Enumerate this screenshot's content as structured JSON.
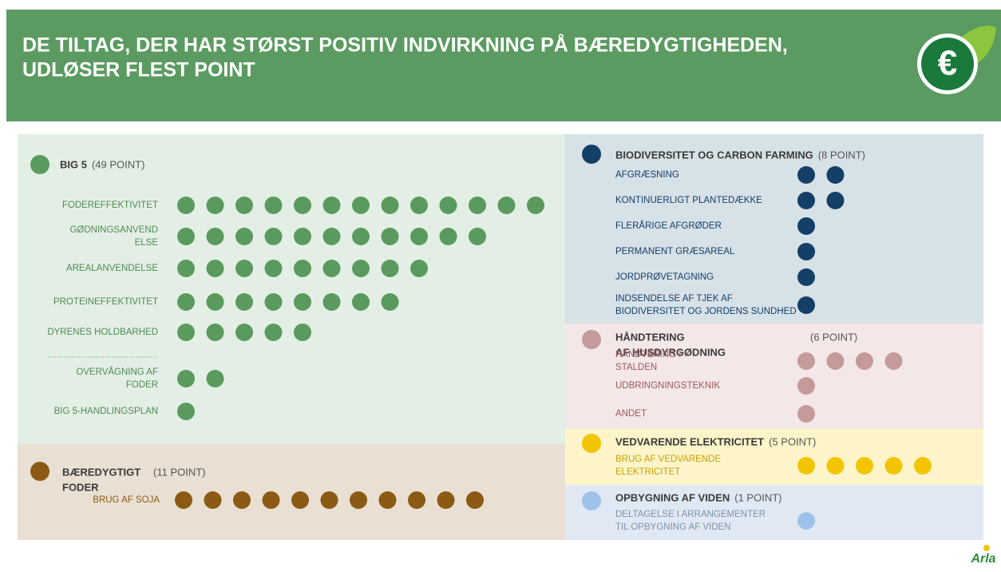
{
  "header": {
    "title": [
      "DE TILTAG, DER HAR STØRST POSITIV INDVIRKNING PÅ BÆREDYGTIGHEDEN,",
      "UDLØSER FLEST POINT"
    ]
  },
  "sections": [
    {
      "title": [
        "BIG 5"
      ],
      "points_label": "(49 POINT)",
      "color": "#5a9a5f",
      "items": [
        {
          "label": [
            "FODEREFFEKTIVITET"
          ],
          "points": 13
        },
        {
          "label": [
            "GØDNINGSANVEND",
            "ELSE"
          ],
          "points": 11
        },
        {
          "label": [
            "AREALANVENDELSE"
          ],
          "points": 9
        },
        {
          "label": [
            "PROTEINEFFEKTIVITET"
          ],
          "points": 8
        },
        {
          "label": [
            "DYRENES HOLDBARHED"
          ],
          "points": 5
        },
        {
          "label": [
            "OVERVÅGNING AF",
            "FODER"
          ],
          "points": 2
        },
        {
          "label": [
            "BIG 5-HANDLINGSPLAN"
          ],
          "points": 1
        }
      ]
    },
    {
      "title": [
        "BÆREDYGTIGT",
        "FODER"
      ],
      "points_label": "(11 POINT)",
      "color": "#8b5a14",
      "items": [
        {
          "label": [
            "BRUG AF SOJA"
          ],
          "points": 11
        }
      ]
    },
    {
      "title": [
        "BIODIVERSITET OG CARBON FARMING"
      ],
      "points_label": "(8 POINT)",
      "color": "#143f66",
      "items": [
        {
          "label": [
            "AFGRÆSNING"
          ],
          "points": 2
        },
        {
          "label": [
            "KONTINUERLIGT PLANTEDÆKKE"
          ],
          "points": 2
        },
        {
          "label": [
            "FLERÅRIGE AFGRØDER"
          ],
          "points": 1
        },
        {
          "label": [
            "PERMANENT GRÆSAREAL"
          ],
          "points": 1
        },
        {
          "label": [
            "JORDPRØVETAGNING"
          ],
          "points": 1
        },
        {
          "label": [
            "INDSENDELSE AF TJEK AF",
            "BIODIVERSITET OG JORDENS SUNDHED"
          ],
          "points": 1
        }
      ]
    },
    {
      "title": [
        "HÅNDTERING",
        "AF HUSDYRGØDNING"
      ],
      "points_label": "(6 POINT)",
      "color": "#c49a9b",
      "items": [
        {
          "label": [
            "HÅNDTERING I",
            "STALDEN"
          ],
          "points": 4
        },
        {
          "label": [
            "UDBRINGNINGSTEKNIK"
          ],
          "points": 1
        },
        {
          "label": [
            "ANDET"
          ],
          "points": 1
        }
      ]
    },
    {
      "title": [
        "VEDVARENDE ELEKTRICITET"
      ],
      "points_label": "(5 POINT)",
      "color": "#f2c500",
      "items": [
        {
          "label": [
            "BRUG AF VEDVARENDE",
            "ELEKTRICITET"
          ],
          "points": 5
        }
      ]
    },
    {
      "title": [
        "OPBYGNING AF VIDEN"
      ],
      "points_label": "(1 POINT)",
      "color": "#9fc3e8",
      "items": [
        {
          "label": [
            "DELTAGELSE I ARRANGEMENTER",
            "TIL OPBYGNING AF VIDEN"
          ],
          "points": 1
        }
      ]
    }
  ],
  "logo": {
    "text": "Arla"
  }
}
